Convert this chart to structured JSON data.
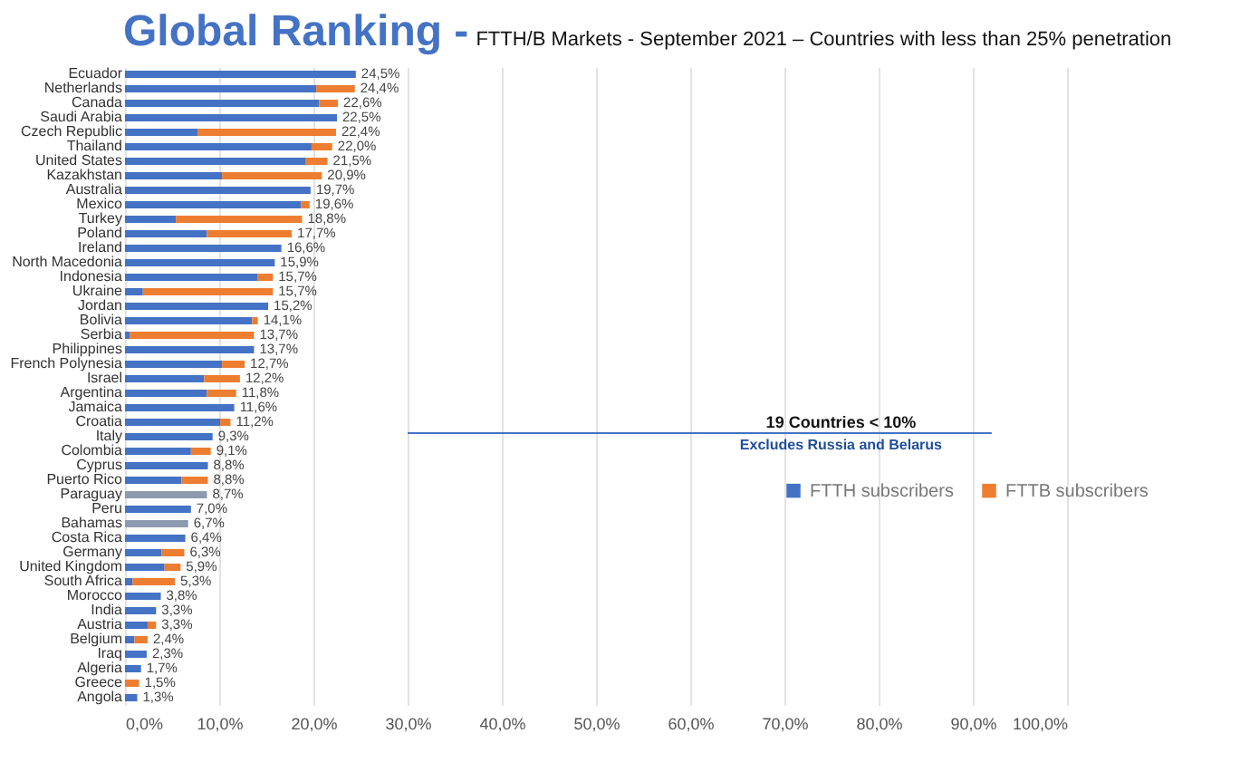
{
  "chart_data": {
    "type": "bar",
    "orientation": "horizontal",
    "stacked": true,
    "title": "Global Ranking -",
    "subtitle": "FTTH/B Markets - September 2021 – Countries with less than 25% penetration",
    "categories": [
      "Ecuador",
      "Netherlands",
      "Canada",
      "Saudi Arabia",
      "Czech Republic",
      "Thailand",
      "United States",
      "Kazakhstan",
      "Australia",
      "Mexico",
      "Turkey",
      "Poland",
      "Ireland",
      "North Macedonia",
      "Indonesia",
      "Ukraine",
      "Jordan",
      "Bolivia",
      "Serbia",
      "Philippines",
      "French Polynesia",
      "Israel",
      "Argentina",
      "Jamaica",
      "Croatia",
      "Italy",
      "Colombia",
      "Cyprus",
      "Puerto Rico",
      "Paraguay",
      "Peru",
      "Bahamas",
      "Costa Rica",
      "Germany",
      "United Kingdom",
      "South Africa",
      "Morocco",
      "India",
      "Austria",
      "Belgium",
      "Iraq",
      "Algeria",
      "Greece",
      "Angola"
    ],
    "series": [
      {
        "name": "FTTH subscribers",
        "color": "#4472c4",
        "values": [
          24.5,
          20.3,
          20.6,
          22.5,
          7.7,
          19.8,
          19.2,
          10.3,
          19.7,
          18.7,
          5.4,
          8.7,
          16.6,
          15.9,
          14.1,
          1.9,
          15.2,
          13.5,
          0.5,
          13.7,
          10.3,
          8.4,
          8.7,
          11.6,
          10.1,
          9.3,
          7.0,
          8.8,
          6.0,
          null,
          7.0,
          null,
          6.4,
          3.9,
          4.2,
          0.8,
          3.8,
          3.3,
          2.4,
          1.0,
          2.3,
          1.7,
          null,
          1.3
        ]
      },
      {
        "name": "FTTB subscribers",
        "color": "#ed7d31",
        "values": [
          null,
          4.1,
          2.0,
          null,
          14.7,
          2.2,
          2.3,
          10.6,
          null,
          0.9,
          13.4,
          9.0,
          null,
          null,
          1.6,
          13.8,
          null,
          0.6,
          13.2,
          null,
          2.4,
          3.8,
          3.1,
          null,
          1.1,
          null,
          2.1,
          null,
          2.8,
          null,
          null,
          null,
          null,
          2.4,
          1.7,
          4.5,
          null,
          null,
          0.9,
          1.4,
          null,
          null,
          1.5,
          null
        ]
      },
      {
        "color": "#8e9aaf",
        "values": [
          null,
          null,
          null,
          null,
          null,
          null,
          null,
          null,
          null,
          null,
          null,
          null,
          null,
          null,
          null,
          null,
          null,
          null,
          null,
          null,
          null,
          null,
          null,
          null,
          null,
          null,
          null,
          null,
          null,
          8.7,
          null,
          6.7,
          null,
          null,
          null,
          null,
          null,
          null,
          null,
          null,
          null,
          null,
          null,
          null
        ]
      }
    ],
    "totals": [
      "24,5%",
      "24,4%",
      "22,6%",
      "22,5%",
      "22,4%",
      "22,0%",
      "21,5%",
      "20,9%",
      "19,7%",
      "19,6%",
      "18,8%",
      "17,7%",
      "16,6%",
      "15,9%",
      "15,7%",
      "15,7%",
      "15,2%",
      "14,1%",
      "13,7%",
      "13,7%",
      "12,7%",
      "12,2%",
      "11,8%",
      "11,6%",
      "11,2%",
      "9,3%",
      "9,1%",
      "8,8%",
      "8,8%",
      "8,7%",
      "7,0%",
      "6,7%",
      "6,4%",
      "6,3%",
      "5,9%",
      "5,3%",
      "3,8%",
      "3,3%",
      "3,3%",
      "2,4%",
      "2,3%",
      "1,7%",
      "1,5%",
      "1,3%"
    ],
    "xlim": [
      0,
      100
    ],
    "xticks": [
      {
        "value": 0,
        "label": "0,0%"
      },
      {
        "value": 10,
        "label": "10,0%"
      },
      {
        "value": 20,
        "label": "20,0%"
      },
      {
        "value": 30,
        "label": "30,0%"
      },
      {
        "value": 40,
        "label": "40,0%"
      },
      {
        "value": 50,
        "label": "50,0%"
      },
      {
        "value": 60,
        "label": "60,0%"
      },
      {
        "value": 70,
        "label": "70,0%"
      },
      {
        "value": 80,
        "label": "80,0%"
      },
      {
        "value": 90,
        "label": "90,0%"
      },
      {
        "value": 100,
        "label": "100,0%"
      }
    ],
    "grid": "x",
    "legend": "right",
    "ref_lines": [
      {
        "axis": "y",
        "value": "Italy",
        "label": "19 Countries < 10%",
        "color": "#4472c4"
      }
    ],
    "annotations": [
      "Excludes Russia and Belarus"
    ]
  }
}
